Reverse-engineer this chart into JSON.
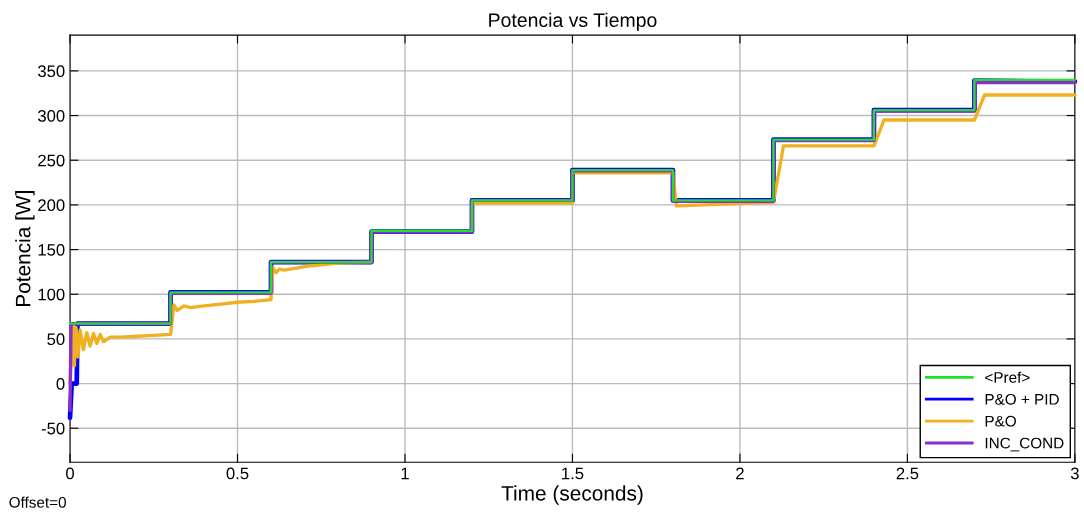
{
  "chart_data": {
    "type": "line",
    "title": "Potencia vs Tiempo",
    "xlabel": "Time (seconds)",
    "ylabel": "Potencia [W]",
    "annotations": [
      "Offset=0"
    ],
    "xlim": [
      0,
      3
    ],
    "xticks": [
      0,
      0.5,
      1,
      1.5,
      2,
      2.5,
      3
    ],
    "ylim": [
      -88,
      390
    ],
    "yticks": [
      -50,
      0,
      50,
      100,
      150,
      200,
      250,
      300,
      350
    ],
    "grid": true,
    "legend": "bottom right",
    "marker": "none",
    "line_style": "solid",
    "series": [
      {
        "name": "<Pref>",
        "color": "#22e022",
        "x": [
          0,
          0.002,
          0.3,
          0.3,
          0.6,
          0.6,
          0.9,
          0.9,
          1.2,
          1.2,
          1.5,
          1.5,
          1.8,
          1.8,
          2.1,
          2.1,
          2.4,
          2.4,
          2.7,
          2.7,
          3
        ],
        "values": [
          67,
          67,
          67,
          102,
          102,
          136,
          136,
          171,
          171,
          205,
          205,
          239,
          239,
          205,
          205,
          273,
          273,
          306,
          306,
          340,
          340
        ]
      },
      {
        "name": "P&O + PID",
        "color": "#0000ff",
        "x": [
          0,
          0.005,
          0.02,
          0.022,
          0.3,
          0.3,
          0.6,
          0.6,
          0.9,
          0.9,
          1.2,
          1.2,
          1.5,
          1.5,
          1.8,
          1.8,
          2.1,
          2.1,
          2.4,
          2.4,
          2.7,
          2.7,
          3
        ],
        "values": [
          -38,
          0,
          0,
          67,
          67,
          102,
          102,
          136,
          136,
          170,
          170,
          205,
          205,
          239,
          239,
          205,
          205,
          273,
          273,
          306,
          306,
          339,
          338
        ]
      },
      {
        "name": "P&O",
        "color": "#f0b020",
        "x": [
          0,
          0.008,
          0.013,
          0.018,
          0.024,
          0.03,
          0.04,
          0.05,
          0.06,
          0.07,
          0.08,
          0.09,
          0.1,
          0.12,
          0.15,
          0.2,
          0.25,
          0.3,
          0.3,
          0.31,
          0.32,
          0.34,
          0.36,
          0.4,
          0.45,
          0.5,
          0.55,
          0.6,
          0.605,
          0.615,
          0.625,
          0.64,
          0.7,
          0.75,
          0.8,
          0.9,
          0.9,
          1.2,
          1.2,
          1.5,
          1.5,
          1.8,
          1.81,
          2.1,
          2.13,
          2.4,
          2.43,
          2.7,
          2.73,
          3
        ],
        "values": [
          0,
          65,
          20,
          63,
          30,
          60,
          38,
          57,
          42,
          56,
          45,
          55,
          47,
          52,
          52,
          53,
          54,
          55,
          55,
          88,
          82,
          87,
          85,
          87,
          89,
          91,
          92,
          94,
          130,
          124,
          128,
          127,
          131,
          133,
          135,
          136,
          170,
          170,
          202,
          202,
          236,
          236,
          199,
          203,
          266,
          266,
          295,
          295,
          323,
          323
        ]
      },
      {
        "name": "INC_COND",
        "color": "#8b2fc9",
        "x": [
          0,
          0.003,
          0.3,
          0.3,
          0.6,
          0.6,
          0.9,
          0.9,
          1.2,
          1.2,
          1.5,
          1.5,
          1.8,
          1.8,
          2.1,
          2.1,
          2.4,
          2.4,
          2.7,
          2.7,
          3
        ],
        "values": [
          -30,
          67,
          67,
          101,
          101,
          136,
          136,
          170,
          170,
          205,
          205,
          238,
          238,
          204,
          204,
          272,
          272,
          305,
          305,
          337,
          337
        ]
      }
    ]
  }
}
